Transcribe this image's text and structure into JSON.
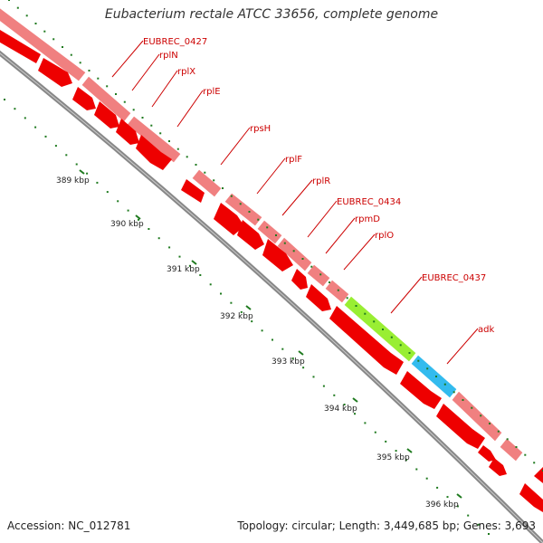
{
  "title": "Eubacterium rectale ATCC 33656, complete genome",
  "footer": {
    "accession": "Accession: NC_012781",
    "summary": "Topology: circular; Length: 3,449,685 bp; Genes: 3,693"
  },
  "colors": {
    "gene_label": "#cc0000",
    "cds_upper": "#f08080",
    "cds_lower": "#ee0000",
    "highlight_green": "#99ee33",
    "highlight_blue": "#33bbee",
    "tick": "#1f7a1f",
    "backbone": "#888888"
  },
  "ruler_labels": [
    "389 kbp",
    "390 kbp",
    "391 kbp",
    "392 kbp",
    "393 kbp",
    "394 kbp",
    "395 kbp",
    "396 kbp"
  ],
  "gene_labels": [
    "EUBREC_0427",
    "rplN",
    "rplX",
    "rplE",
    "rpsH",
    "rplF",
    "rplR",
    "EUBREC_0434",
    "rpmD",
    "rplO",
    "EUBREC_0437",
    "adk"
  ]
}
